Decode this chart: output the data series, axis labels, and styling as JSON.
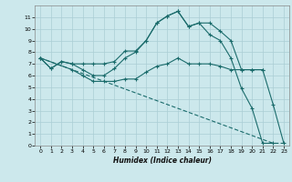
{
  "xlabel": "Humidex (Indice chaleur)",
  "bg_color": "#cce8ec",
  "grid_color": "#aacdd4",
  "line_color": "#1a6b6b",
  "xlim": [
    -0.5,
    23.5
  ],
  "ylim": [
    0,
    12
  ],
  "xticks": [
    0,
    1,
    2,
    3,
    4,
    5,
    6,
    7,
    8,
    9,
    10,
    11,
    12,
    13,
    14,
    15,
    16,
    17,
    18,
    19,
    20,
    21,
    22,
    23
  ],
  "yticks": [
    0,
    1,
    2,
    3,
    4,
    5,
    6,
    7,
    8,
    9,
    10,
    11
  ],
  "line1_x": [
    0,
    1,
    2,
    3,
    4,
    5,
    6,
    7,
    8,
    9,
    10,
    11,
    12,
    13,
    14,
    15,
    16,
    17,
    18,
    19,
    20,
    21
  ],
  "line1_y": [
    7.5,
    6.6,
    7.2,
    7.0,
    7.0,
    7.0,
    7.0,
    7.2,
    8.1,
    8.1,
    9.0,
    10.5,
    11.1,
    11.5,
    10.2,
    10.5,
    10.5,
    9.8,
    9.0,
    6.5,
    6.5,
    6.5
  ],
  "line2_x": [
    0,
    1,
    2,
    3,
    4,
    5,
    6,
    7,
    8,
    9,
    10,
    11,
    12,
    13,
    14,
    15,
    16,
    17,
    18,
    19,
    20,
    21,
    22
  ],
  "line2_y": [
    7.5,
    6.6,
    7.2,
    7.0,
    6.5,
    6.0,
    6.0,
    6.6,
    7.5,
    8.0,
    9.0,
    10.5,
    11.1,
    11.5,
    10.2,
    10.5,
    9.5,
    9.0,
    7.5,
    4.9,
    3.2,
    0.2,
    0.2
  ],
  "line3_x": [
    0,
    3,
    4,
    5,
    6,
    7,
    8,
    9,
    10,
    11,
    12,
    13,
    14,
    15,
    16,
    17,
    18,
    19,
    20,
    21,
    22,
    23
  ],
  "line3_y": [
    7.5,
    6.5,
    6.0,
    5.5,
    5.5,
    5.5,
    5.7,
    5.7,
    6.3,
    6.8,
    7.0,
    7.5,
    7.0,
    7.0,
    7.0,
    6.8,
    6.5,
    6.5,
    6.5,
    6.5,
    3.5,
    0.2
  ],
  "line4_x": [
    0,
    22,
    23
  ],
  "line4_y": [
    7.5,
    0.2,
    0.2
  ]
}
